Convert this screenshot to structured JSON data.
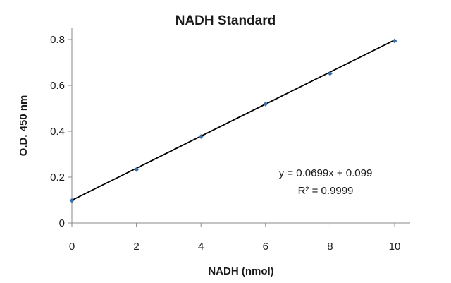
{
  "chart_data": {
    "type": "scatter",
    "title": "NADH Standard",
    "xlabel": "NADH (nmol)",
    "ylabel": "O.D. 450 nm",
    "xlim": [
      0,
      10
    ],
    "ylim": [
      0,
      0.8
    ],
    "x_ticks": [
      "0",
      "2",
      "4",
      "6",
      "8",
      "10"
    ],
    "y_ticks": [
      "0",
      "0.2",
      "0.4",
      "0.6",
      "0.8"
    ],
    "grid": false,
    "series": [
      {
        "x": [
          0,
          2,
          4,
          6,
          8,
          10
        ],
        "y": [
          0.098,
          0.233,
          0.377,
          0.519,
          0.652,
          0.794
        ]
      }
    ],
    "trendline": {
      "slope": 0.0699,
      "intercept": 0.099
    },
    "equation_label": "y = 0.0699x + 0.099",
    "r2_label": "R² = 0.9999",
    "colors": {
      "marker": "#3a6ea8",
      "trendline": "#000000",
      "axis": "#8a8a8a"
    }
  }
}
